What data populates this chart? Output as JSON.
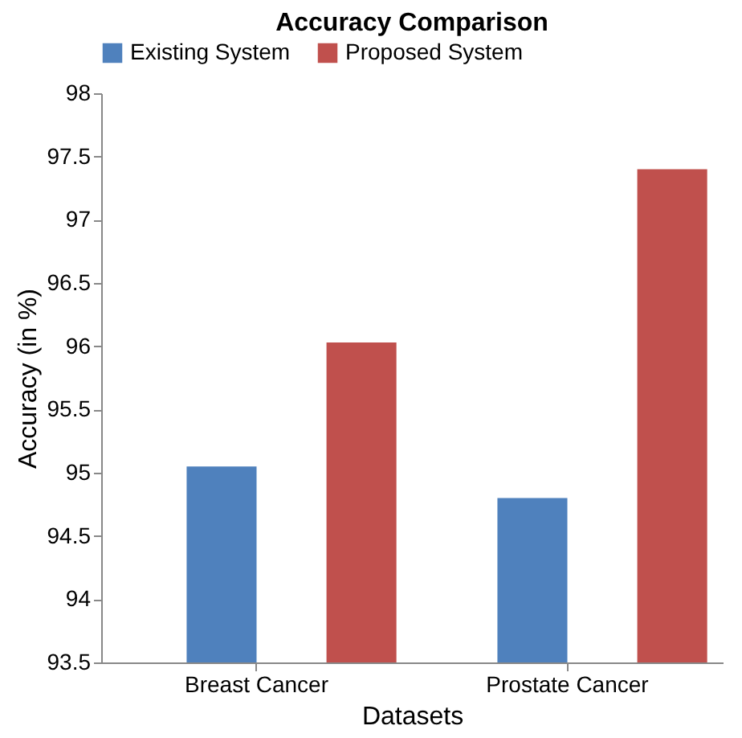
{
  "chart_data": {
    "type": "bar",
    "title": "Accuracy Comparison",
    "xlabel": "Datasets",
    "ylabel": "Accuracy (in %)",
    "categories": [
      "Breast Cancer",
      "Prostate Cancer"
    ],
    "series": [
      {
        "name": "Existing System",
        "color": "#4f81bd",
        "values": [
          95.05,
          94.8
        ]
      },
      {
        "name": "Proposed System",
        "color": "#c0504d",
        "values": [
          96.03,
          97.4
        ]
      }
    ],
    "ylim": [
      93.5,
      98
    ],
    "yticks": [
      93.5,
      94,
      94.5,
      95,
      95.5,
      96,
      96.5,
      97,
      97.5,
      98
    ],
    "grid": false,
    "legend": "top"
  }
}
